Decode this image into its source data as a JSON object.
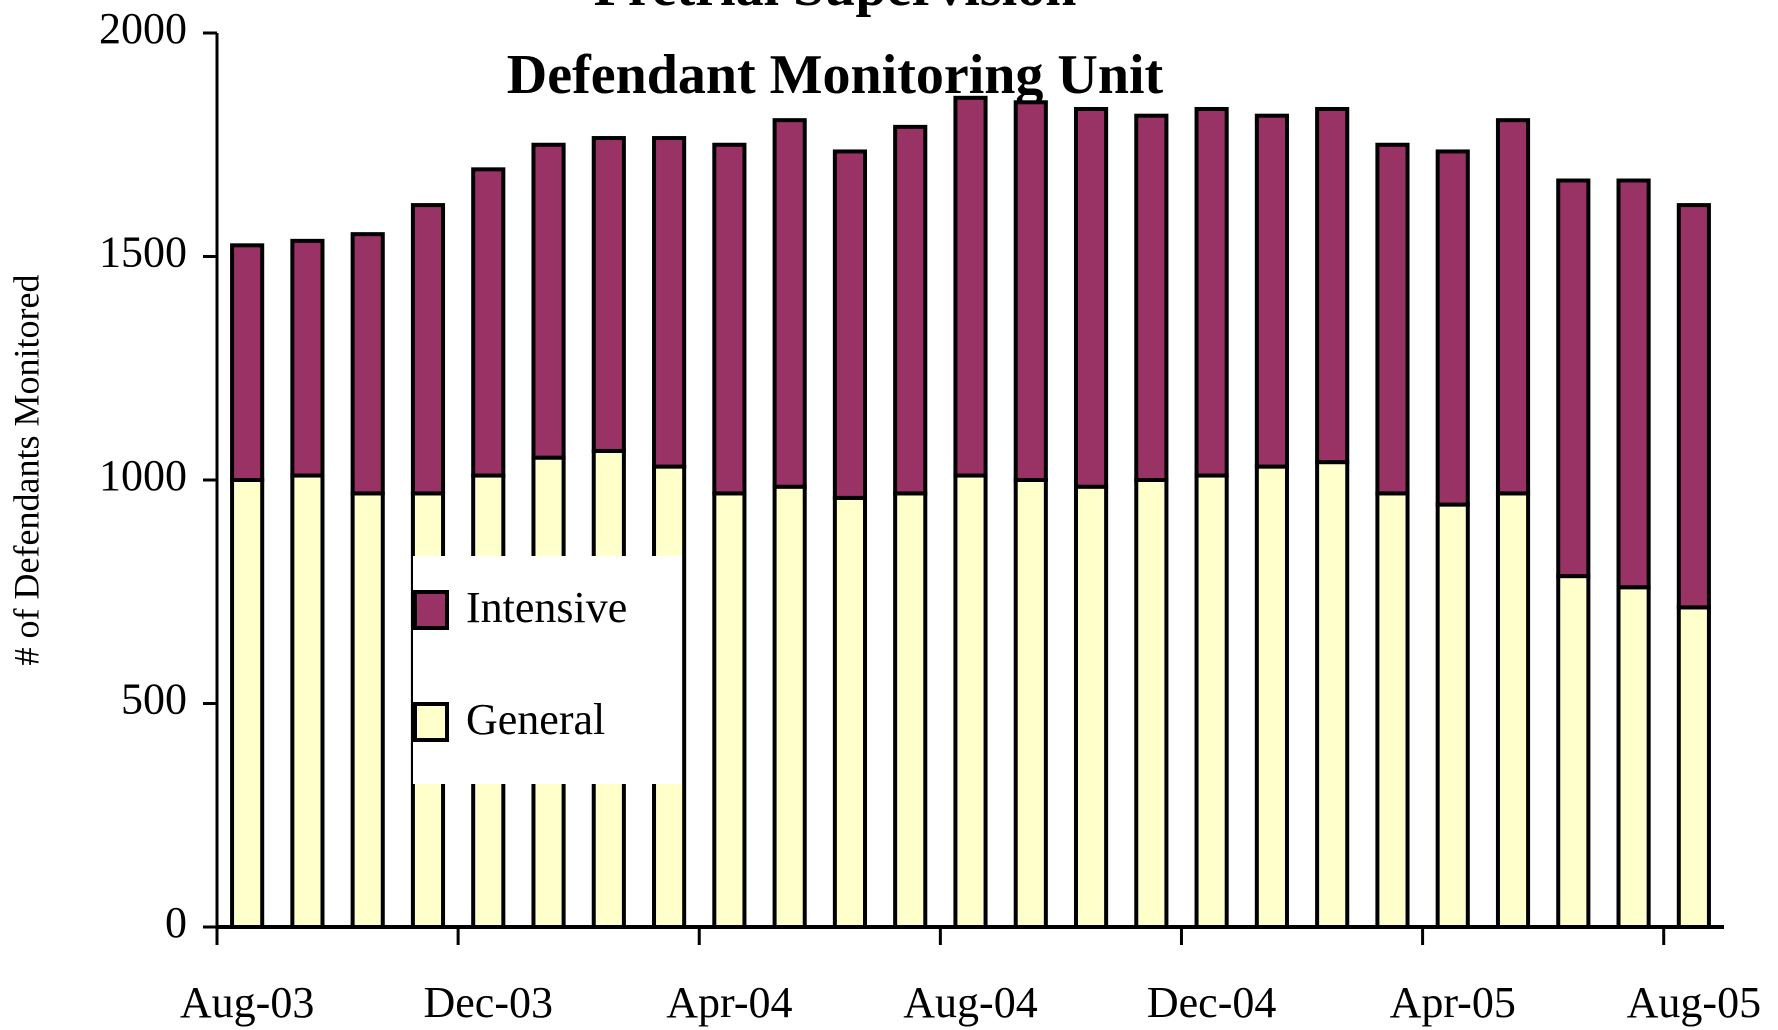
{
  "chart_data": {
    "type": "stacked_bar",
    "title": "Pretrial Supervision",
    "subtitle": "Defendant Monitoring Unit",
    "y_label": "# of Defendants Monitored",
    "categories": [
      "Aug-03",
      null,
      null,
      null,
      "Dec-03",
      null,
      null,
      null,
      "Apr-04",
      null,
      null,
      null,
      "Aug-04",
      null,
      null,
      null,
      "Dec-04",
      null,
      null,
      null,
      "Apr-05",
      null,
      null,
      null,
      "Aug-05"
    ],
    "series": [
      {
        "name": "General",
        "color": "#ffffcc",
        "values": [
          1000,
          1010,
          970,
          970,
          1010,
          1050,
          1065,
          1030,
          970,
          985,
          960,
          970,
          1010,
          1000,
          985,
          1000,
          1010,
          1030,
          1040,
          970,
          945,
          970,
          785,
          760,
          715
        ]
      },
      {
        "name": "Intensive",
        "color": "#993366",
        "values": [
          525,
          525,
          580,
          645,
          685,
          700,
          700,
          735,
          780,
          820,
          775,
          820,
          845,
          845,
          845,
          815,
          820,
          785,
          790,
          780,
          790,
          835,
          885,
          910,
          900
        ]
      }
    ],
    "ylim": [
      0,
      2000
    ],
    "yticks": [
      0,
      500,
      1000,
      1500,
      2000
    ],
    "grid": false
  }
}
